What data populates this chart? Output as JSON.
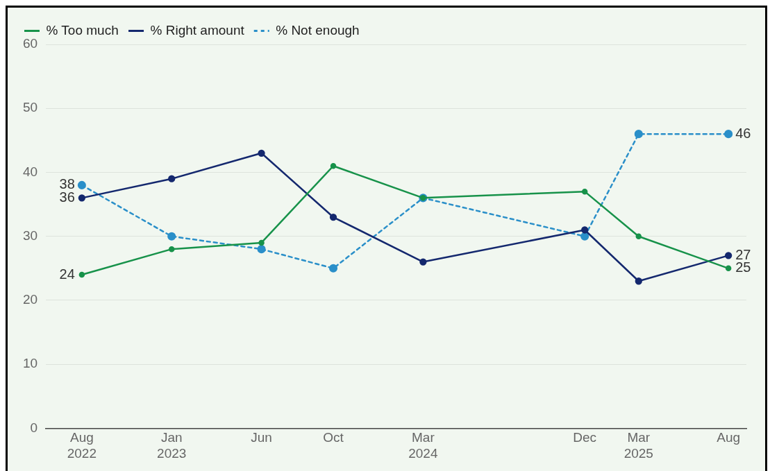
{
  "chart_data": {
    "type": "line",
    "x": [
      "2022-08",
      "2023-01",
      "2023-06",
      "2023-10",
      "2024-03",
      "2024-12",
      "2025-03",
      "2025-08"
    ],
    "series": [
      {
        "name": "% Too much",
        "color": "#17924a",
        "values": [
          24,
          28,
          29,
          41,
          36,
          37,
          30,
          25
        ],
        "value_labels": [
          "24",
          null,
          null,
          null,
          null,
          null,
          null,
          "25"
        ],
        "line_style": "solid"
      },
      {
        "name": "% Right amount",
        "color": "#14286e",
        "values": [
          36,
          39,
          43,
          33,
          26,
          31,
          23,
          27
        ],
        "value_labels": [
          "36",
          null,
          null,
          null,
          null,
          null,
          null,
          "27"
        ],
        "line_style": "solid"
      },
      {
        "name": "% Not enough",
        "color": "#2a8fc9",
        "values": [
          38,
          30,
          28,
          25,
          36,
          30,
          46,
          46
        ],
        "value_labels": [
          "38",
          null,
          null,
          null,
          null,
          null,
          null,
          "46"
        ],
        "line_style": "dashed"
      }
    ],
    "xlim": [
      "2022-06",
      "2025-09"
    ],
    "xticks": [
      {
        "value": "2022-08",
        "label": "Aug 2022"
      },
      {
        "value": "2023-01",
        "label": "Jan 2023"
      },
      {
        "value": "2023-06",
        "label": "Jun"
      },
      {
        "value": "2023-10",
        "label": "Oct"
      },
      {
        "value": "2024-03",
        "label": "Mar 2024"
      },
      {
        "value": "2024-12",
        "label": "Dec"
      },
      {
        "value": "2025-03",
        "label": "Mar 2025"
      },
      {
        "value": "2025-08",
        "label": "Aug"
      }
    ],
    "ylim": [
      0,
      60
    ],
    "yticks": [
      0,
      10,
      20,
      30,
      40,
      50,
      60
    ],
    "grid": "y",
    "legend": "top left",
    "marker": "circle"
  }
}
